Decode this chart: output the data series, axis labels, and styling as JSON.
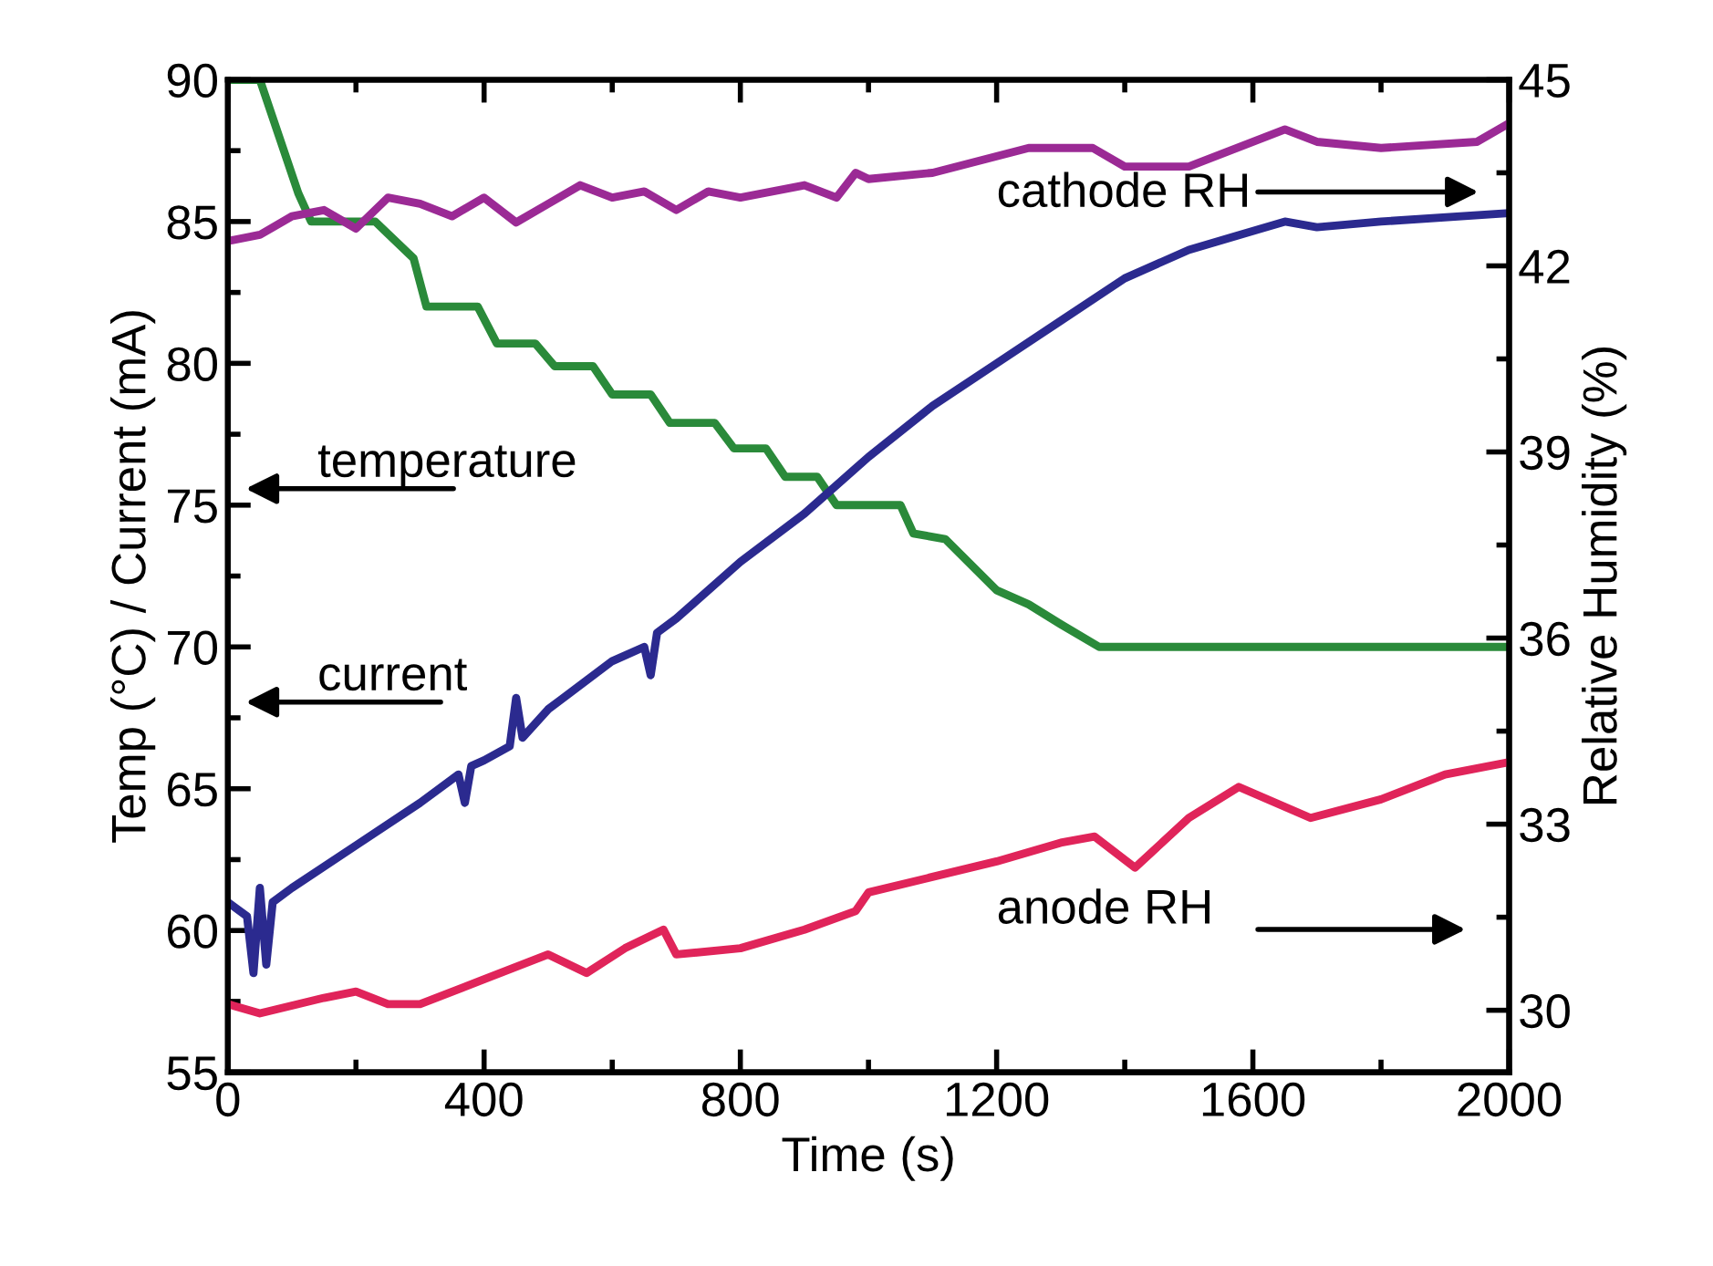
{
  "chart_data": {
    "type": "line",
    "xlabel": "Time (s)",
    "ylabel": "Temp (°C) / Current (mA)",
    "y2label": "Relative Humidity (%)",
    "xlim": [
      0,
      2000
    ],
    "xticks": [
      0,
      400,
      800,
      1200,
      1600,
      2000
    ],
    "ylim": [
      55,
      90
    ],
    "yticks": [
      55,
      60,
      65,
      70,
      75,
      80,
      85,
      90
    ],
    "y2lim": [
      29,
      45
    ],
    "y2ticks": [
      30,
      33,
      36,
      39,
      42,
      45
    ],
    "grid": false,
    "legend": false,
    "marker": "none",
    "line_style": "solid",
    "annotations": [
      "temperature",
      "current",
      "cathode RH",
      "anode RH"
    ],
    "series": [
      {
        "color": "#2a8a3a",
        "x": [
          0,
          50,
          80,
          110,
          130,
          150,
          230,
          290,
          310,
          390,
          420,
          480,
          510,
          570,
          600,
          660,
          690,
          760,
          790,
          840,
          870,
          920,
          950,
          1050,
          1070,
          1120,
          1200,
          1250,
          1300,
          1360,
          2000
        ],
        "values": [
          90,
          90,
          88,
          86,
          85,
          85,
          85,
          83.7,
          82,
          82,
          80.7,
          80.7,
          79.9,
          79.9,
          78.9,
          78.9,
          77.9,
          77.9,
          77,
          77,
          76,
          76,
          75,
          75,
          74,
          73.8,
          72,
          71.5,
          70.8,
          70,
          70
        ]
      },
      {
        "color": "#2b2a8f",
        "x": [
          0,
          30,
          40,
          50,
          60,
          70,
          100,
          200,
          300,
          360,
          370,
          380,
          400,
          440,
          450,
          460,
          500,
          600,
          650,
          660,
          670,
          700,
          800,
          900,
          1000,
          1100,
          1200,
          1300,
          1400,
          1500,
          1650,
          1700,
          1800,
          2000
        ],
        "values": [
          61,
          60.5,
          58.5,
          61.5,
          58.8,
          61,
          61.5,
          63,
          64.5,
          65.5,
          64.5,
          65.8,
          66,
          66.5,
          68.2,
          66.8,
          67.8,
          69.5,
          70,
          69,
          70.5,
          71,
          73,
          74.7,
          76.7,
          78.5,
          80,
          81.5,
          83,
          84,
          85,
          84.8,
          85,
          85.3
        ]
      },
      {
        "color": "#9b2a95",
        "axis": "y2",
        "x": [
          0,
          50,
          100,
          150,
          200,
          250,
          300,
          350,
          400,
          450,
          500,
          550,
          600,
          650,
          700,
          750,
          800,
          900,
          950,
          980,
          1000,
          1100,
          1250,
          1350,
          1400,
          1500,
          1650,
          1700,
          1800,
          1950,
          2000
        ],
        "values": [
          42.4,
          42.5,
          42.8,
          42.9,
          42.6,
          43.1,
          43.0,
          42.8,
          43.1,
          42.7,
          43.0,
          43.3,
          43.1,
          43.2,
          42.9,
          43.2,
          43.1,
          43.3,
          43.1,
          43.5,
          43.4,
          43.5,
          43.9,
          43.9,
          43.6,
          43.6,
          44.2,
          44.0,
          43.9,
          44.0,
          44.3
        ]
      },
      {
        "color": "#e0245a",
        "axis": "y2",
        "x": [
          0,
          50,
          150,
          200,
          250,
          300,
          400,
          500,
          560,
          620,
          680,
          700,
          800,
          900,
          980,
          1000,
          1200,
          1300,
          1353,
          1416,
          1500,
          1578,
          1690,
          1800,
          1900,
          2000
        ],
        "values": [
          30.1,
          29.95,
          30.2,
          30.3,
          30.1,
          30.1,
          30.5,
          30.9,
          30.6,
          31.0,
          31.3,
          30.9,
          31.0,
          31.3,
          31.6,
          31.9,
          32.4,
          32.7,
          32.8,
          32.3,
          33.1,
          33.6,
          33.1,
          33.4,
          33.8,
          34.0
        ]
      }
    ]
  }
}
